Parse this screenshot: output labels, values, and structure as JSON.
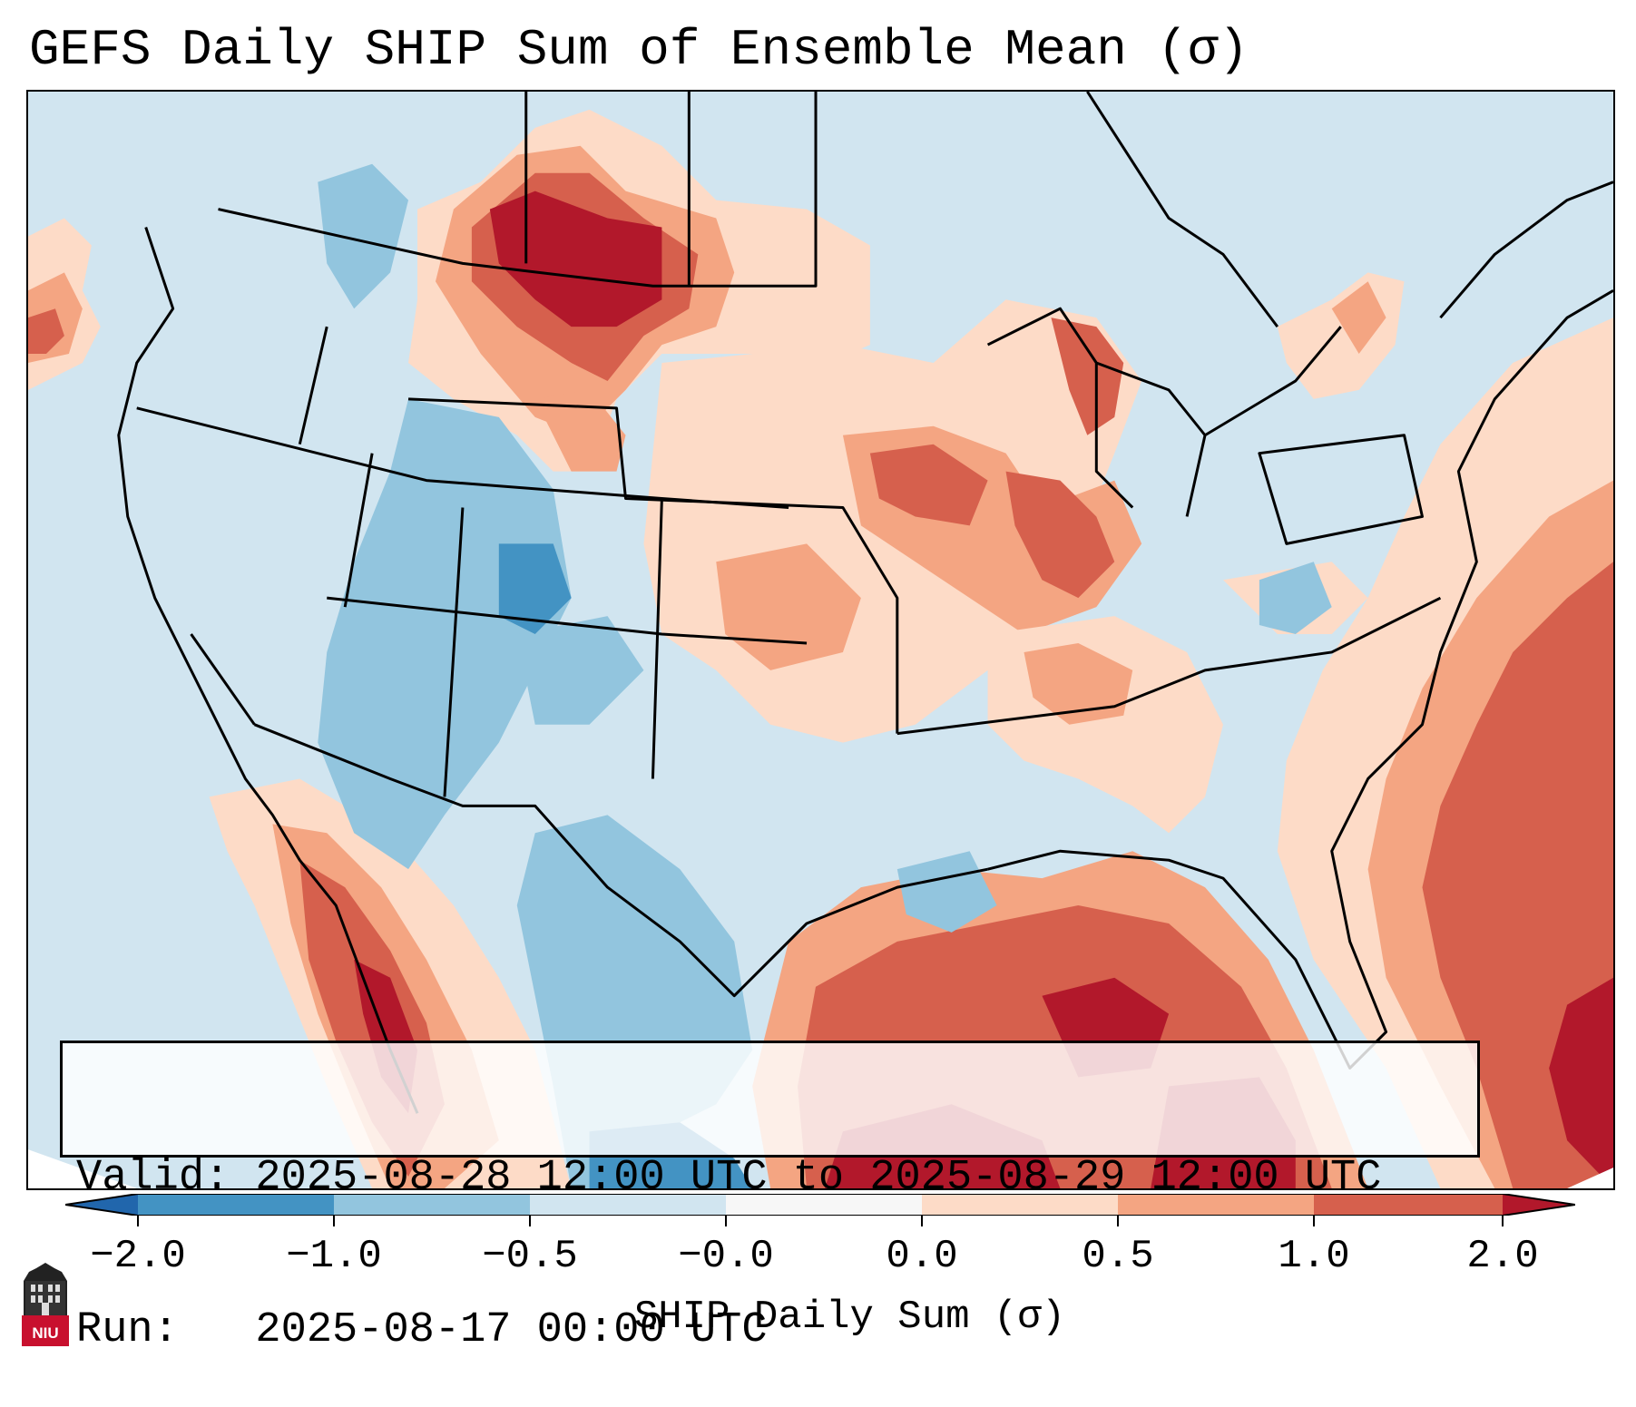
{
  "title": "GEFS Daily SHIP Sum of Ensemble Mean (σ)",
  "info": {
    "valid_line": "Valid: 2025-08-28 12:00 UTC to 2025-08-29 12:00 UTC",
    "run_line": "Run:   2025-08-17 00:00 UTC"
  },
  "colorbar": {
    "label": "SHIP Daily Sum (σ)",
    "ticks": [
      "−2.0",
      "−1.0",
      "−0.5",
      "−0.0",
      "0.0",
      "0.5",
      "1.0",
      "2.0"
    ],
    "colors": [
      "#4393c3",
      "#92c5de",
      "#d1e5f0",
      "#f7f7f7",
      "#fddbc7",
      "#f4a582",
      "#d6604d"
    ],
    "extend_low_color": "#2166ac",
    "extend_high_color": "#b2182b"
  },
  "logo": {
    "text": "NIU"
  }
}
